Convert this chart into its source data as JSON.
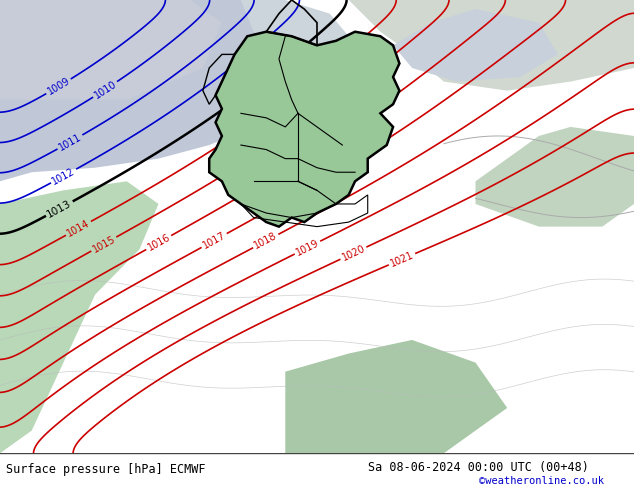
{
  "title_left": "Surface pressure [hPa] ECMWF",
  "title_right": "Sa 08-06-2024 00:00 UTC (00+48)",
  "credit": "©weatheronline.co.uk",
  "bg_land_color": "#b8ddb8",
  "bg_sea_color": "#d8d8e8",
  "bg_ocean_color": "#c8c8d8",
  "germany_color": "#98c898",
  "border_color": "#000000",
  "figsize": [
    6.34,
    4.9
  ],
  "dpi": 100,
  "blue_color": "#0000cc",
  "red_color": "#cc0000",
  "black_color": "#000000",
  "gray_color": "#999999",
  "credit_color": "#0000cc",
  "font_size_label": 7,
  "font_size_title": 8.5
}
